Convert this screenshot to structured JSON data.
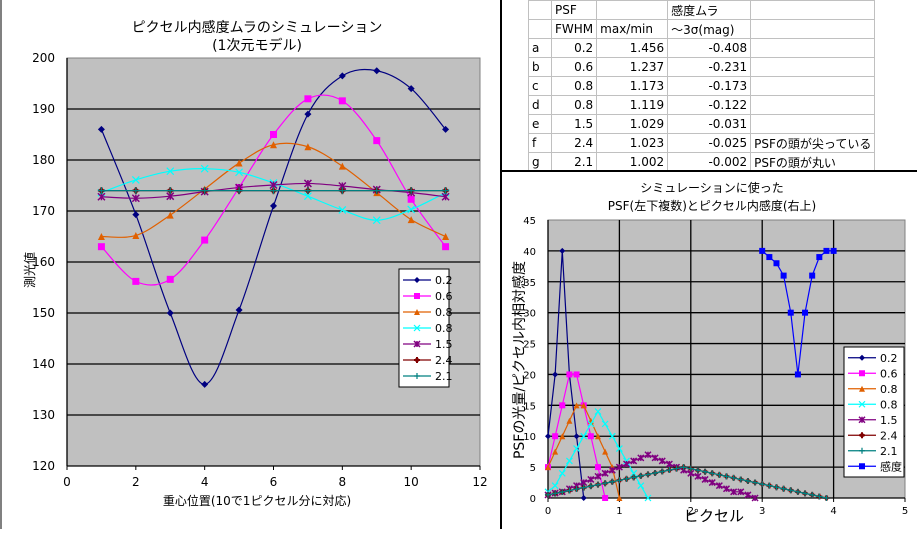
{
  "table": {
    "header_row1": [
      "",
      "PSF",
      "",
      "感度ムラ",
      ""
    ],
    "header_row2": [
      "",
      "FWHM",
      "max/min",
      "～3σ(mag)",
      ""
    ],
    "rows": [
      {
        "id": "a",
        "fwhm": "0.2",
        "maxmin": "1.456",
        "sigma": "-0.408",
        "note": ""
      },
      {
        "id": "b",
        "fwhm": "0.6",
        "maxmin": "1.237",
        "sigma": "-0.231",
        "note": ""
      },
      {
        "id": "c",
        "fwhm": "0.8",
        "maxmin": "1.173",
        "sigma": "-0.173",
        "note": ""
      },
      {
        "id": "d",
        "fwhm": "0.8",
        "maxmin": "1.119",
        "sigma": "-0.122",
        "note": ""
      },
      {
        "id": "e",
        "fwhm": "1.5",
        "maxmin": "1.029",
        "sigma": "-0.031",
        "note": ""
      },
      {
        "id": "f",
        "fwhm": "2.4",
        "maxmin": "1.023",
        "sigma": "-0.025",
        "note": "PSFの頭が尖っている"
      },
      {
        "id": "g",
        "fwhm": "2.1",
        "maxmin": "1.002",
        "sigma": "-0.002",
        "note": "PSFの頭が丸い"
      }
    ]
  },
  "chart_data": [
    {
      "type": "line",
      "title": "ピクセル内感度ムラのシミュレーション",
      "subtitle": "(1次元モデル)",
      "xlabel": "重心位置(10で1ピクセル分に対応)",
      "ylabel": "測光値",
      "xlim": [
        0,
        12
      ],
      "ylim": [
        120,
        200
      ],
      "xticks": [
        0,
        2,
        4,
        6,
        8,
        10,
        12
      ],
      "yticks": [
        120,
        130,
        140,
        150,
        160,
        170,
        180,
        190,
        200
      ],
      "grid": true,
      "legend_position": "bottom-right",
      "x": [
        1,
        2,
        3,
        4,
        5,
        6,
        7,
        8,
        9,
        10,
        11
      ],
      "series": [
        {
          "name": "0.2",
          "color": "#000080",
          "marker": "diamond",
          "values": [
            186,
            169.3,
            150,
            136,
            150.6,
            171,
            189,
            196.5,
            197.5,
            194,
            186
          ]
        },
        {
          "name": "0.6",
          "color": "#FF00FF",
          "marker": "square",
          "values": [
            163,
            156.2,
            156.6,
            164.3,
            174.6,
            185,
            192,
            191.6,
            183.8,
            172.3,
            163
          ]
        },
        {
          "name": "0.8",
          "color": "#E06000",
          "marker": "triangle",
          "values": [
            165,
            165.2,
            169.2,
            174.3,
            179.4,
            183,
            182.6,
            178.8,
            173.6,
            168.3,
            165
          ]
        },
        {
          "name": "0.8",
          "color": "#00FFFF",
          "marker": "x",
          "values": [
            173.6,
            176.1,
            177.8,
            178.3,
            177.6,
            175.5,
            172.9,
            170.2,
            168.2,
            170.3,
            173.6
          ]
        },
        {
          "name": "1.5",
          "color": "#800080",
          "marker": "star",
          "values": [
            172.8,
            172.5,
            172.9,
            173.8,
            174.6,
            175.1,
            175.4,
            174.9,
            174.2,
            173.6,
            172.8
          ]
        },
        {
          "name": "2.4",
          "color": "#800000",
          "marker": "circle",
          "values": [
            174,
            174,
            174,
            174,
            174,
            174,
            174,
            174,
            174,
            174,
            174
          ]
        },
        {
          "name": "2.1",
          "color": "#008080",
          "marker": "plus",
          "values": [
            174,
            174,
            174,
            174,
            174,
            174,
            174,
            174,
            174,
            174,
            174
          ]
        }
      ]
    },
    {
      "type": "line",
      "title": "シミュレーションに使った",
      "subtitle": "PSF(左下複数)とピクセル内感度(右上)",
      "xlabel": "ピクセル",
      "ylabel": "PSFの光量/ピクセル内相対感度",
      "xlim": [
        0,
        5
      ],
      "ylim": [
        0,
        45
      ],
      "xticks": [
        0,
        1,
        2,
        3,
        4,
        5
      ],
      "yticks": [
        0,
        5,
        10,
        15,
        20,
        25,
        30,
        35,
        40,
        45
      ],
      "grid": true,
      "legend_position": "right",
      "series": [
        {
          "name": "0.2",
          "color": "#000080",
          "marker": "diamond",
          "x": [
            0,
            0.1,
            0.2,
            0.3,
            0.4,
            0.5
          ],
          "values": [
            10,
            20,
            40,
            20,
            10,
            0
          ]
        },
        {
          "name": "0.6",
          "color": "#FF00FF",
          "marker": "square",
          "x": [
            0,
            0.1,
            0.2,
            0.3,
            0.4,
            0.5,
            0.6,
            0.7,
            0.8
          ],
          "values": [
            5,
            10,
            15,
            20,
            20,
            15,
            10,
            5,
            0
          ]
        },
        {
          "name": "0.8",
          "color": "#E06000",
          "marker": "triangle",
          "x": [
            0,
            0.1,
            0.2,
            0.3,
            0.4,
            0.5,
            0.6,
            0.7,
            0.8,
            0.9,
            1.0
          ],
          "values": [
            5,
            7.5,
            10,
            12.5,
            15,
            15,
            12.5,
            10,
            7.5,
            5,
            0
          ]
        },
        {
          "name": "0.8",
          "color": "#00FFFF",
          "marker": "x",
          "x": [
            0,
            0.1,
            0.2,
            0.3,
            0.4,
            0.5,
            0.6,
            0.7,
            0.8,
            0.9,
            1.0,
            1.1,
            1.2,
            1.3,
            1.4
          ],
          "values": [
            1,
            2,
            4,
            6,
            8,
            10,
            12,
            14,
            12,
            10,
            8,
            6,
            4,
            2,
            0
          ]
        },
        {
          "name": "1.5",
          "color": "#800080",
          "marker": "star",
          "x": [
            0,
            0.1,
            0.2,
            0.3,
            0.4,
            0.5,
            0.6,
            0.7,
            0.8,
            0.9,
            1.0,
            1.1,
            1.2,
            1.3,
            1.4,
            1.5,
            1.6,
            1.7,
            1.8,
            1.9,
            2.0,
            2.1,
            2.2,
            2.3,
            2.4,
            2.5,
            2.6,
            2.7,
            2.8,
            2.9
          ],
          "values": [
            0.5,
            0.8,
            1,
            1.5,
            2,
            2.5,
            3,
            3.5,
            4,
            4.5,
            5,
            5.5,
            6,
            6.5,
            7,
            6.5,
            6,
            5.5,
            5,
            4.5,
            4,
            3.5,
            3,
            2.5,
            2,
            1.5,
            1,
            1,
            0.5,
            0
          ]
        },
        {
          "name": "2.4",
          "color": "#800000",
          "marker": "circle",
          "x_start": 0,
          "x_step": 0.1,
          "peak_x": 1.9,
          "peak": 5,
          "x_end": 3.9
        },
        {
          "name": "2.1",
          "color": "#008080",
          "marker": "plus",
          "x_start": 0,
          "x_step": 0.1,
          "peak_x": 1.9,
          "peak": 5,
          "x_end": 3.9
        },
        {
          "name": "感度",
          "color": "#0000FF",
          "marker": "square",
          "x": [
            3.0,
            3.1,
            3.2,
            3.3,
            3.4,
            3.5,
            3.6,
            3.7,
            3.8,
            3.9,
            4.0
          ],
          "values": [
            40,
            39,
            38,
            36,
            30,
            20,
            30,
            36,
            39,
            40,
            40
          ]
        }
      ]
    }
  ]
}
